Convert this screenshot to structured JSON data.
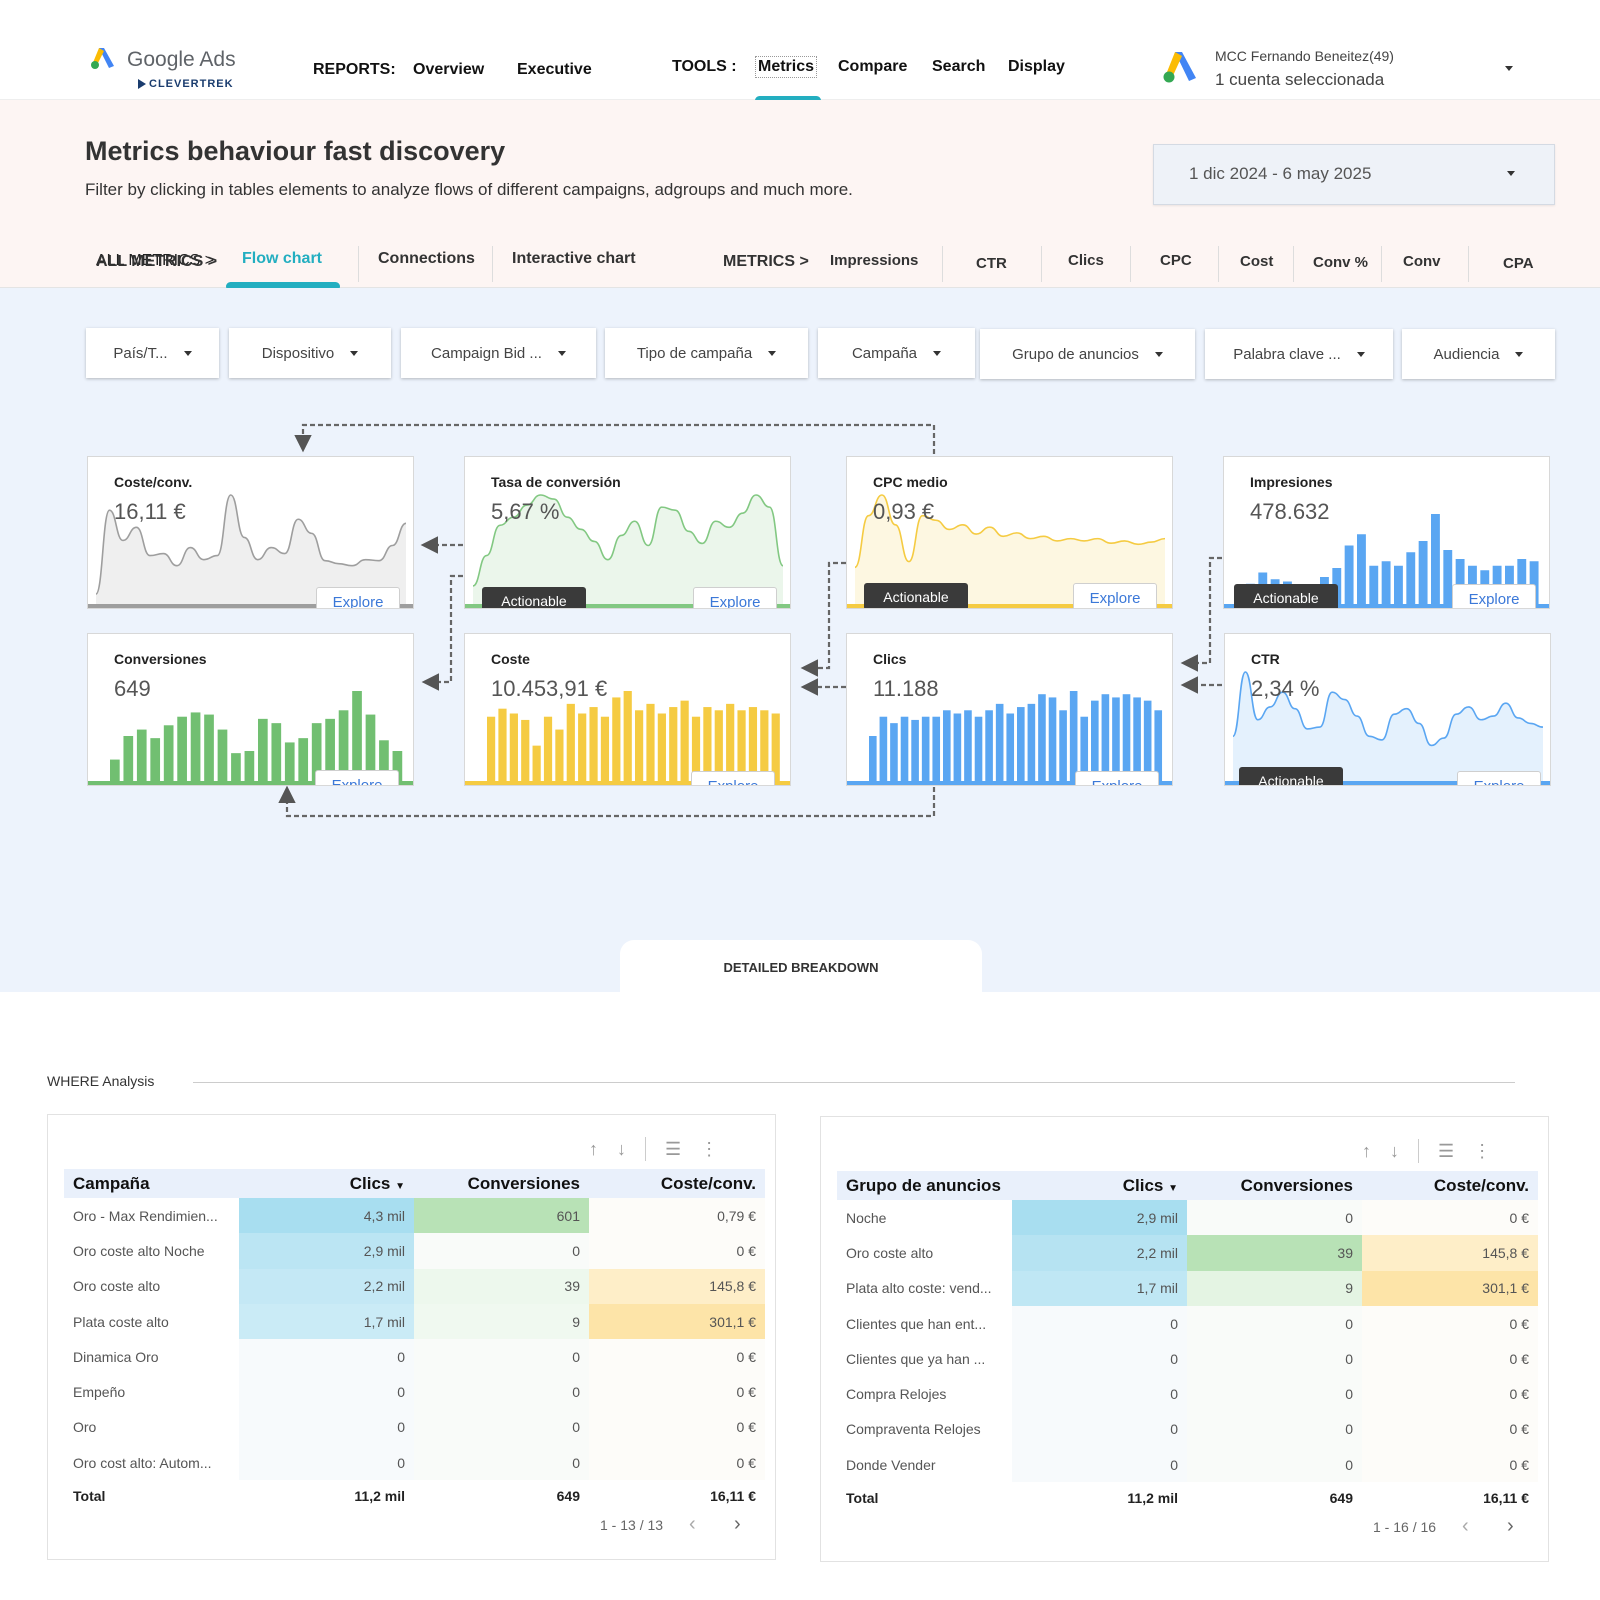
{
  "topbar": {
    "logo_text": "Google Ads",
    "logo_sub": "CLEVERTREK",
    "reports_label": "REPORTS:",
    "reports": [
      "Overview",
      "Executive"
    ],
    "tools_label": "TOOLS :",
    "tools": [
      "Metrics",
      "Compare",
      "Search",
      "Display"
    ],
    "active_tool": "Metrics",
    "account_name": "MCC Fernando Beneitez(49)",
    "account_sub": "1 cuenta seleccionada"
  },
  "hero": {
    "title": "Metrics behaviour fast discovery",
    "subtitle": "Filter by clicking in tables elements to analyze flows of different campaigns, adgroups and much more.",
    "date_range": "1 dic 2024 - 6 may 2025"
  },
  "tabs": {
    "all_metrics_label": "ALL METRICS  >",
    "views": [
      "Flow chart",
      "Connections",
      "Interactive chart"
    ],
    "active_view": "Flow chart",
    "metrics_label": "METRICS  >",
    "metrics": [
      "Impressions",
      "CTR",
      "Clics",
      "CPC",
      "Cost",
      "Conv %",
      "Conv",
      "CPA"
    ]
  },
  "filters": [
    "País/T...",
    "Dispositivo",
    "Campaign Bid ...",
    "Tipo de campaña",
    "Campaña",
    "Grupo de anuncios",
    "Palabra clave ...",
    "Audiencia"
  ],
  "cards": {
    "coste_conv": {
      "title": "Coste/conv.",
      "value": "16,11 €",
      "explore": "Explore",
      "color": "#9e9e9e",
      "series": [
        2,
        85,
        55,
        68,
        40,
        42,
        30,
        48,
        36,
        40,
        100,
        58,
        36,
        48,
        42,
        76,
        62,
        35,
        32,
        30,
        36,
        35,
        50,
        72
      ]
    },
    "tasa_conv": {
      "title": "Tasa de conversión",
      "value": "5,67 %",
      "explore": "Explore",
      "actionable": "Actionable",
      "color": "#82c882",
      "series": [
        10,
        40,
        70,
        78,
        90,
        100,
        96,
        78,
        66,
        54,
        36,
        60,
        74,
        50,
        88,
        85,
        64,
        52,
        74,
        68,
        82,
        100,
        88,
        30
      ]
    },
    "cpc_medio": {
      "title": "CPC medio",
      "value": "0,93 €",
      "explore": "Explore",
      "actionable": "Actionable",
      "color": "#f5cb42",
      "series": [
        25,
        70,
        88,
        62,
        30,
        70,
        66,
        58,
        62,
        54,
        60,
        52,
        55,
        50,
        52,
        48,
        50,
        48,
        50,
        46,
        48,
        45,
        47,
        50
      ]
    },
    "impresiones": {
      "title": "Impresiones",
      "value": "478.632",
      "explore": "Explore",
      "actionable": "Actionable",
      "color": "#5aa6f2",
      "series": [
        18,
        28,
        22,
        20,
        16,
        14,
        24,
        32,
        52,
        62,
        34,
        38,
        34,
        46,
        56,
        80,
        48,
        40,
        34,
        30,
        34,
        34,
        40,
        38
      ]
    },
    "conversiones": {
      "title": "Conversiones",
      "value": "649",
      "explore": "Explore",
      "color": "#71bf71",
      "series": [
        20,
        42,
        48,
        40,
        52,
        60,
        64,
        62,
        48,
        26,
        28,
        58,
        54,
        36,
        40,
        54,
        58,
        66,
        84,
        62,
        38,
        28
      ]
    },
    "coste": {
      "title": "Coste",
      "value": "10.453,91 €",
      "explore": "Explore",
      "color": "#f5cb42",
      "series": [
        40,
        45,
        42,
        38,
        22,
        40,
        32,
        48,
        42,
        46,
        40,
        52,
        56,
        44,
        48,
        42,
        46,
        50,
        40,
        46,
        44,
        48,
        44,
        46,
        44,
        42
      ]
    },
    "clics": {
      "title": "Clics",
      "value": "11.188",
      "explore": "Explore",
      "color": "#5aa6f2",
      "series": [
        28,
        40,
        36,
        40,
        38,
        40,
        40,
        44,
        42,
        44,
        40,
        44,
        48,
        42,
        46,
        48,
        54,
        52,
        44,
        56,
        40,
        50,
        54,
        52,
        54,
        52,
        50,
        44
      ]
    },
    "ctr": {
      "title": "CTR",
      "value": "2,34 %",
      "explore": "Explore",
      "actionable": "Actionable",
      "color": "#5aa6f2",
      "series": [
        40,
        110,
        58,
        72,
        88,
        70,
        48,
        50,
        88,
        80,
        62,
        40,
        36,
        64,
        70,
        54,
        30,
        38,
        64,
        72,
        58,
        62,
        76,
        60,
        54,
        50
      ]
    }
  },
  "breakdown_tab": "DETAILED BREAKDOWN",
  "where_label": "WHERE Analysis",
  "campaign_table": {
    "columns": [
      "Campaña",
      "Clics",
      "Conversiones",
      "Coste/conv."
    ],
    "sort_col": "Clics",
    "rows": [
      {
        "name": "Oro - Max Rendimien...",
        "clics": "4,3 mil",
        "conv": "601",
        "cpa": "0,79 €",
        "c1": 1.0,
        "c2": 1.0,
        "c3": 0
      },
      {
        "name": "Oro coste alto Noche",
        "clics": "2,9 mil",
        "conv": "0",
        "cpa": "0 €",
        "c1": 0.67,
        "c2": 0,
        "c3": 0
      },
      {
        "name": "Oro coste alto",
        "clics": "2,2 mil",
        "conv": "39",
        "cpa": "145,8 €",
        "c1": 0.51,
        "c2": 0.06,
        "c3": 0.48
      },
      {
        "name": "Plata coste alto",
        "clics": "1,7 mil",
        "conv": "9",
        "cpa": "301,1 €",
        "c1": 0.4,
        "c2": 0.01,
        "c3": 1.0
      },
      {
        "name": "Dinamica Oro",
        "clics": "0",
        "conv": "0",
        "cpa": "0 €",
        "c1": 0,
        "c2": 0,
        "c3": 0
      },
      {
        "name": "Empeño",
        "clics": "0",
        "conv": "0",
        "cpa": "0 €",
        "c1": 0,
        "c2": 0,
        "c3": 0
      },
      {
        "name": "Oro",
        "clics": "0",
        "conv": "0",
        "cpa": "0 €",
        "c1": 0,
        "c2": 0,
        "c3": 0
      },
      {
        "name": "Oro cost alto: Autom...",
        "clics": "0",
        "conv": "0",
        "cpa": "0 €",
        "c1": 0,
        "c2": 0,
        "c3": 0
      }
    ],
    "total": {
      "label": "Total",
      "clics": "11,2 mil",
      "conv": "649",
      "cpa": "16,11 €"
    },
    "pager": "1 - 13 / 13"
  },
  "adgroup_table": {
    "columns": [
      "Grupo de anuncios",
      "Clics",
      "Conversiones",
      "Coste/conv."
    ],
    "sort_col": "Clics",
    "rows": [
      {
        "name": "Noche",
        "clics": "2,9 mil",
        "conv": "0",
        "cpa": "0 €",
        "c1": 1.0,
        "c2": 0,
        "c3": 0
      },
      {
        "name": "Oro coste alto",
        "clics": "2,2 mil",
        "conv": "39",
        "cpa": "145,8 €",
        "c1": 0.76,
        "c2": 1.0,
        "c3": 0.48
      },
      {
        "name": "Plata alto coste: vend...",
        "clics": "1,7 mil",
        "conv": "9",
        "cpa": "301,1 €",
        "c1": 0.59,
        "c2": 0.23,
        "c3": 1.0
      },
      {
        "name": "Clientes que han ent...",
        "clics": "0",
        "conv": "0",
        "cpa": "0 €",
        "c1": 0,
        "c2": 0,
        "c3": 0
      },
      {
        "name": "Clientes que ya han ...",
        "clics": "0",
        "conv": "0",
        "cpa": "0 €",
        "c1": 0,
        "c2": 0,
        "c3": 0
      },
      {
        "name": "Compra Relojes",
        "clics": "0",
        "conv": "0",
        "cpa": "0 €",
        "c1": 0,
        "c2": 0,
        "c3": 0
      },
      {
        "name": "Compraventa Relojes",
        "clics": "0",
        "conv": "0",
        "cpa": "0 €",
        "c1": 0,
        "c2": 0,
        "c3": 0
      },
      {
        "name": "Donde Vender",
        "clics": "0",
        "conv": "0",
        "cpa": "0 €",
        "c1": 0,
        "c2": 0,
        "c3": 0
      }
    ],
    "total": {
      "label": "Total",
      "clics": "11,2 mil",
      "conv": "649",
      "cpa": "16,11 €"
    },
    "pager": "1 - 16 / 16"
  },
  "colors": {
    "accent": "#23aec0",
    "clics_fill": "#a8def0",
    "conv_fill": "#b8e2b6",
    "cpa_fill": "#fde4a8"
  }
}
